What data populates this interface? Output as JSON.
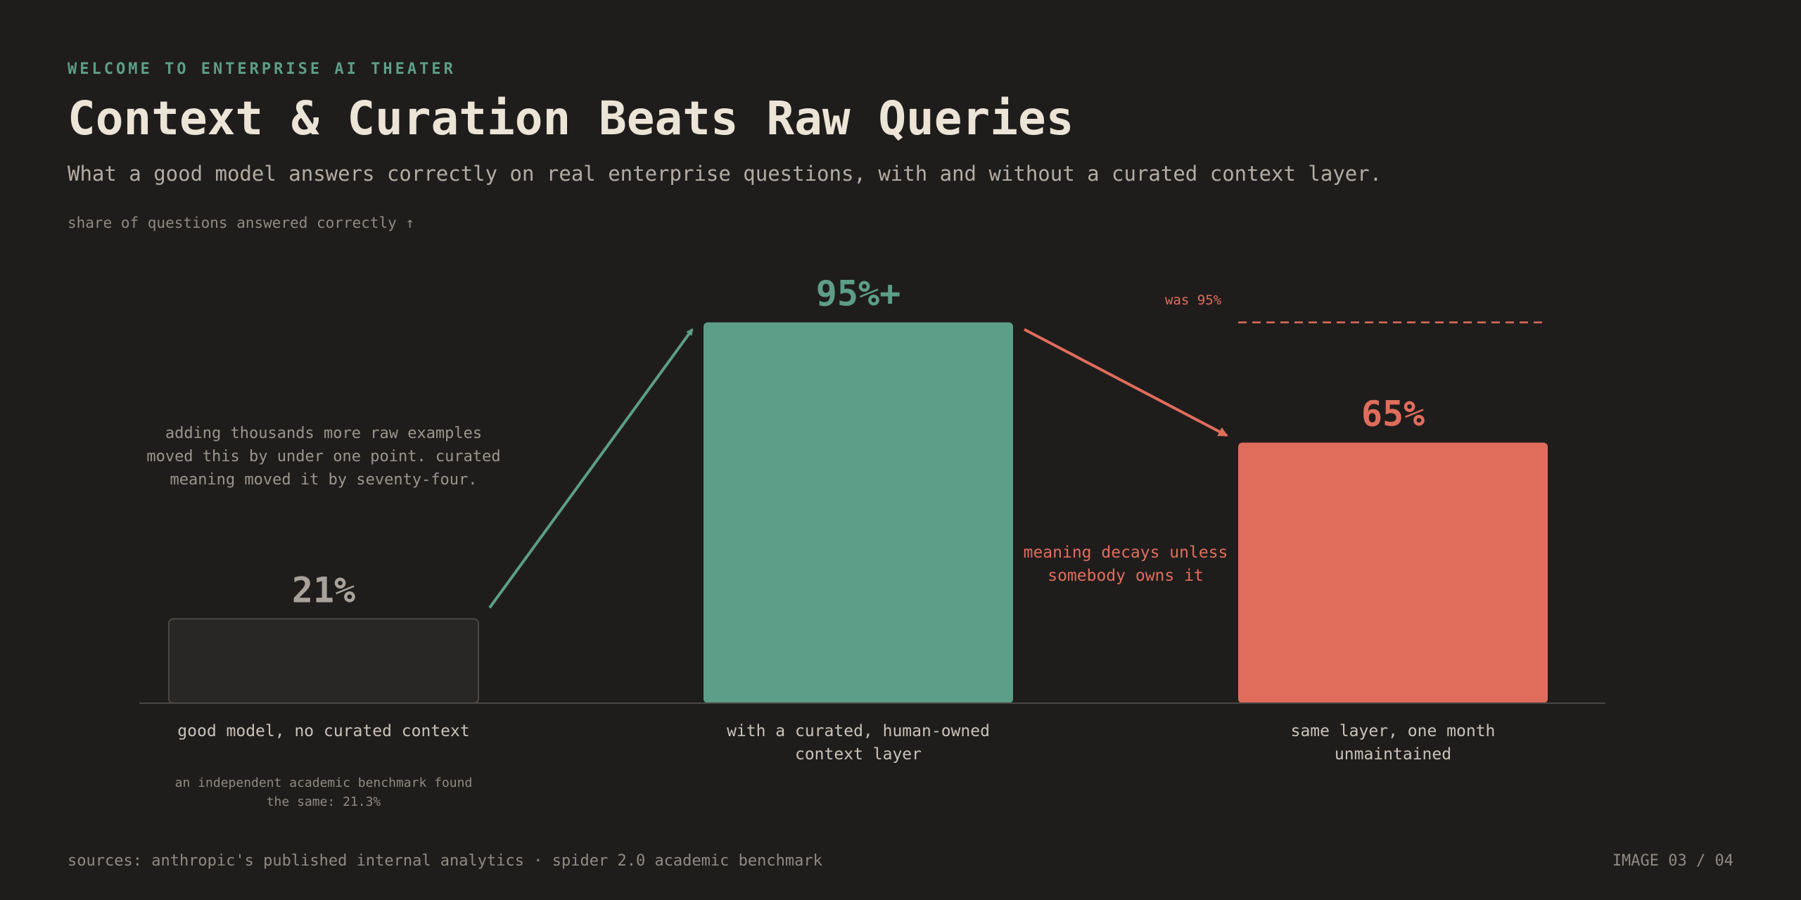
{
  "header": {
    "eyebrow": "WELCOME TO ENTERPRISE AI THEATER",
    "title": "Context & Curation Beats Raw Queries",
    "subtitle": "What a good model answers correctly on real enterprise questions, with and without a curated context layer.",
    "axis_caption": "share of questions answered correctly ↑"
  },
  "chart_data": {
    "type": "bar",
    "categories": [
      "good model, no curated context",
      "with a curated, human-owned context layer",
      "same layer, one month unmaintained"
    ],
    "values": [
      21,
      95,
      65
    ],
    "data_labels": [
      "21%",
      "95%+",
      "65%"
    ],
    "ylabel": "share of questions answered correctly ↑",
    "ylim": [
      0,
      100
    ],
    "grid": false,
    "colors": [
      "#292725",
      "#5d9e88",
      "#e06d5c"
    ],
    "reference_line": {
      "value": 95,
      "label": "was 95%"
    },
    "annotations": {
      "left_note": "adding thousands more raw examples moved this by under one point. curated meaning moved it by seventy-four.",
      "decay_note": "meaning decays unless somebody owns it",
      "first_bar_sub": "an independent academic benchmark found the same: 21.3%"
    }
  },
  "colors": {
    "background": "#1f1d1c",
    "accent_green": "#5d9e88",
    "accent_red": "#e06d5c",
    "text_primary": "#ece4d6"
  },
  "footer": {
    "sources": "sources: anthropic's published internal analytics · spider 2.0 academic benchmark",
    "page": "IMAGE 03 / 04"
  }
}
